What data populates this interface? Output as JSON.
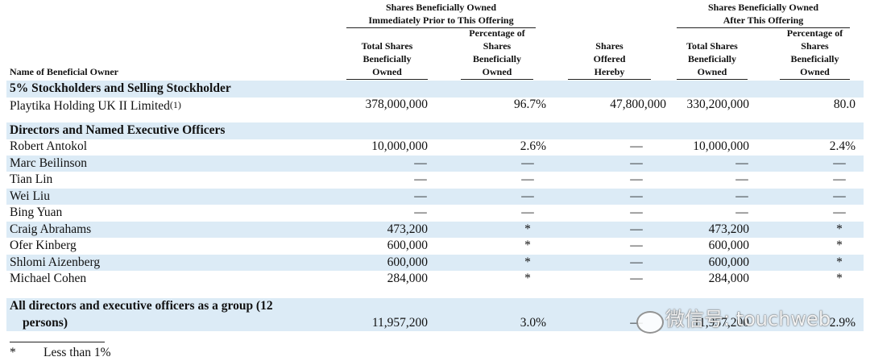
{
  "table": {
    "group_headers": [
      [
        "Shares Beneficially Owned",
        "Immediately Prior to This Offering"
      ],
      [
        "Shares Beneficially Owned",
        "After This Offering"
      ]
    ],
    "columns": [
      [
        "Name of Beneficial Owner"
      ],
      [
        "Total Shares",
        "Beneficially",
        "Owned"
      ],
      [
        "Percentage of",
        "Shares",
        "Beneficially",
        "Owned"
      ],
      [
        "Shares",
        "Offered",
        "Hereby"
      ],
      [
        "Total Shares",
        "Beneficially",
        "Owned"
      ],
      [
        "Percentage of",
        "Shares",
        "Beneficially",
        "Owned"
      ]
    ],
    "rows": [
      {
        "kind": "section",
        "name": "5% Stockholders and Selling Stockholder"
      },
      {
        "kind": "data",
        "name": "Playtika Holding UK II Limited",
        "note": "(1)",
        "cells": [
          "378,000,000",
          "96.7%",
          "47,800,000",
          "330,200,000",
          "80.0"
        ]
      },
      {
        "kind": "section",
        "name": "Directors and Named Executive Officers"
      },
      {
        "kind": "data",
        "name": "Robert Antokol",
        "cells": [
          "10,000,000",
          "2.6%",
          "—",
          "10,000,000",
          "2.4%"
        ]
      },
      {
        "kind": "data",
        "name": "Marc Beilinson",
        "cells": [
          "—",
          "—",
          "—",
          "—",
          "—"
        ]
      },
      {
        "kind": "data",
        "name": "Tian Lin",
        "cells": [
          "—",
          "—",
          "—",
          "—",
          "—"
        ]
      },
      {
        "kind": "data",
        "name": "Wei Liu",
        "cells": [
          "—",
          "—",
          "—",
          "—",
          "—"
        ]
      },
      {
        "kind": "data",
        "name": "Bing Yuan",
        "cells": [
          "—",
          "—",
          "—",
          "—",
          "—"
        ]
      },
      {
        "kind": "data",
        "name": "Craig Abrahams",
        "cells": [
          "473,200",
          "*",
          "—",
          "473,200",
          "*"
        ]
      },
      {
        "kind": "data",
        "name": "Ofer Kinberg",
        "cells": [
          "600,000",
          "*",
          "—",
          "600,000",
          "*"
        ]
      },
      {
        "kind": "data",
        "name": "Shlomi Aizenberg",
        "cells": [
          "600,000",
          "*",
          "—",
          "600,000",
          "*"
        ]
      },
      {
        "kind": "data",
        "name": "Michael Cohen",
        "cells": [
          "284,000",
          "*",
          "—",
          "284,000",
          "*"
        ]
      },
      {
        "kind": "total",
        "name": [
          "All directors and executive officers as a group (12",
          "persons)"
        ],
        "cells": [
          "11,957,200",
          "3.0%",
          "—",
          "11,957,200",
          "2.9%"
        ]
      }
    ]
  },
  "footnote": {
    "marker": "*",
    "text": "Less than 1%"
  },
  "watermark": "微信号: touchweb"
}
